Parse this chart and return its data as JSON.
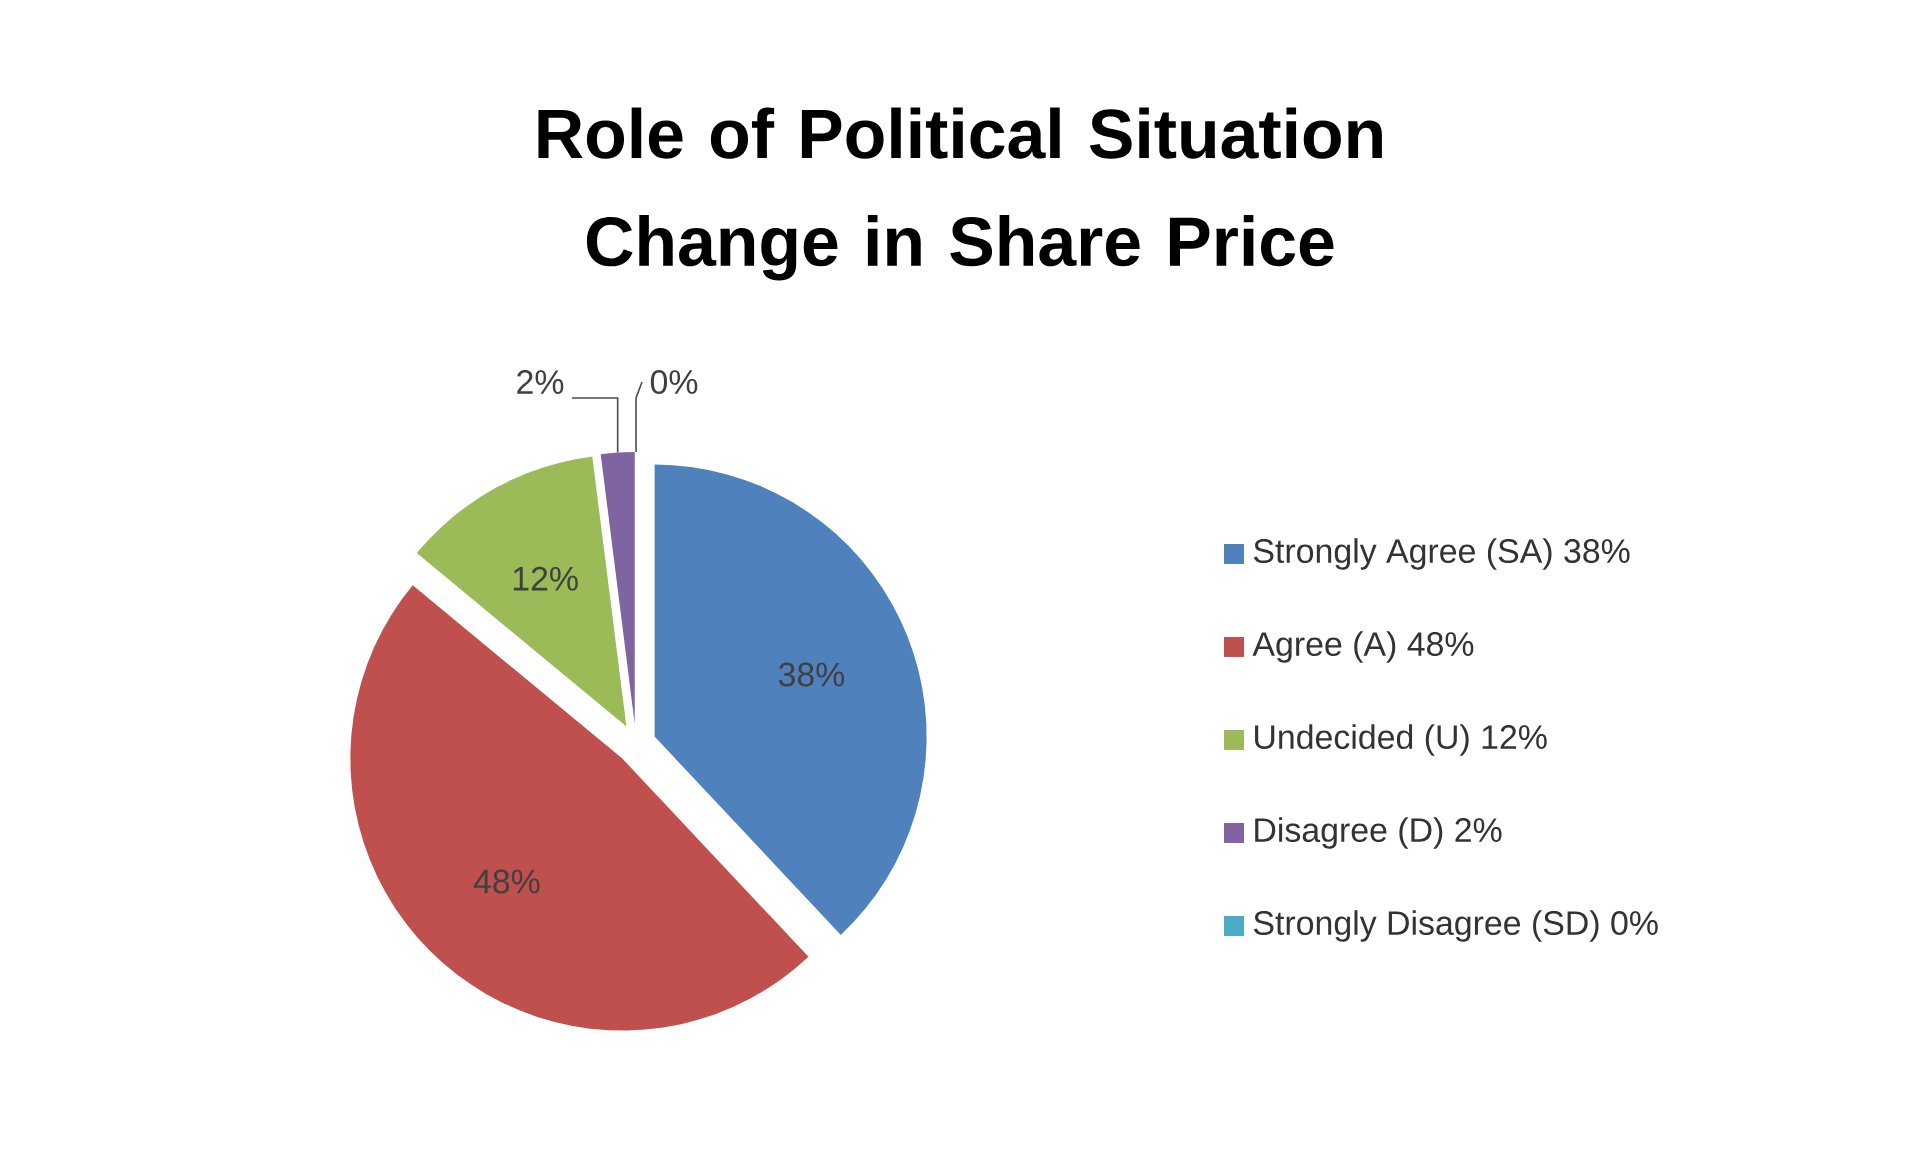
{
  "chart_data": {
    "type": "pie",
    "title": "Role of Political Situation Change in Share Price",
    "categories": [
      "Strongly Agree (SA) 38%",
      "Agree (A) 48%",
      "Undecided (U) 12%",
      "Disagree (D) 2%",
      "Strongly Disagree (SD) 0%"
    ],
    "values": [
      38,
      48,
      12,
      2,
      0
    ],
    "value_labels": [
      "38%",
      "48%",
      "12%",
      "2%",
      "0%"
    ],
    "colors": [
      "#4f81bd",
      "#c0504d",
      "#9bbb59",
      "#8064a2",
      "#4bacc6"
    ],
    "legend": "right"
  }
}
